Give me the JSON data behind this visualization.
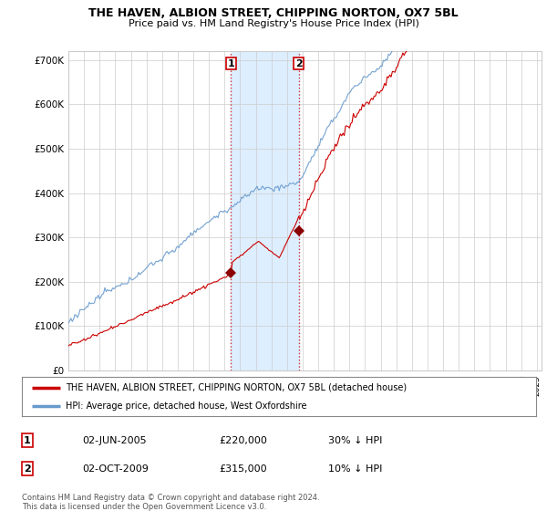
{
  "title": "THE HAVEN, ALBION STREET, CHIPPING NORTON, OX7 5BL",
  "subtitle": "Price paid vs. HM Land Registry's House Price Index (HPI)",
  "ylabel_ticks": [
    "£0",
    "£100K",
    "£200K",
    "£300K",
    "£400K",
    "£500K",
    "£600K",
    "£700K"
  ],
  "ylim": [
    0,
    720000
  ],
  "xlim_start": 1995.0,
  "xlim_end": 2025.3,
  "purchase1_date": 2005.42,
  "purchase1_price": 220000,
  "purchase1_label": "1",
  "purchase2_date": 2009.75,
  "purchase2_price": 315000,
  "purchase2_label": "2",
  "legend_entries": [
    "THE HAVEN, ALBION STREET, CHIPPING NORTON, OX7 5BL (detached house)",
    "HPI: Average price, detached house, West Oxfordshire"
  ],
  "table_rows": [
    [
      "1",
      "02-JUN-2005",
      "£220,000",
      "30% ↓ HPI"
    ],
    [
      "2",
      "02-OCT-2009",
      "£315,000",
      "10% ↓ HPI"
    ]
  ],
  "footer": "Contains HM Land Registry data © Crown copyright and database right 2024.\nThis data is licensed under the Open Government Licence v3.0.",
  "line_color_property": "#cc0000",
  "line_color_hpi": "#6699cc",
  "purchase_marker_color": "#8b0000",
  "vline_color": "#cc0000",
  "shade_color": "#ddeeff",
  "background_color": "#ffffff",
  "grid_color": "#cccccc"
}
